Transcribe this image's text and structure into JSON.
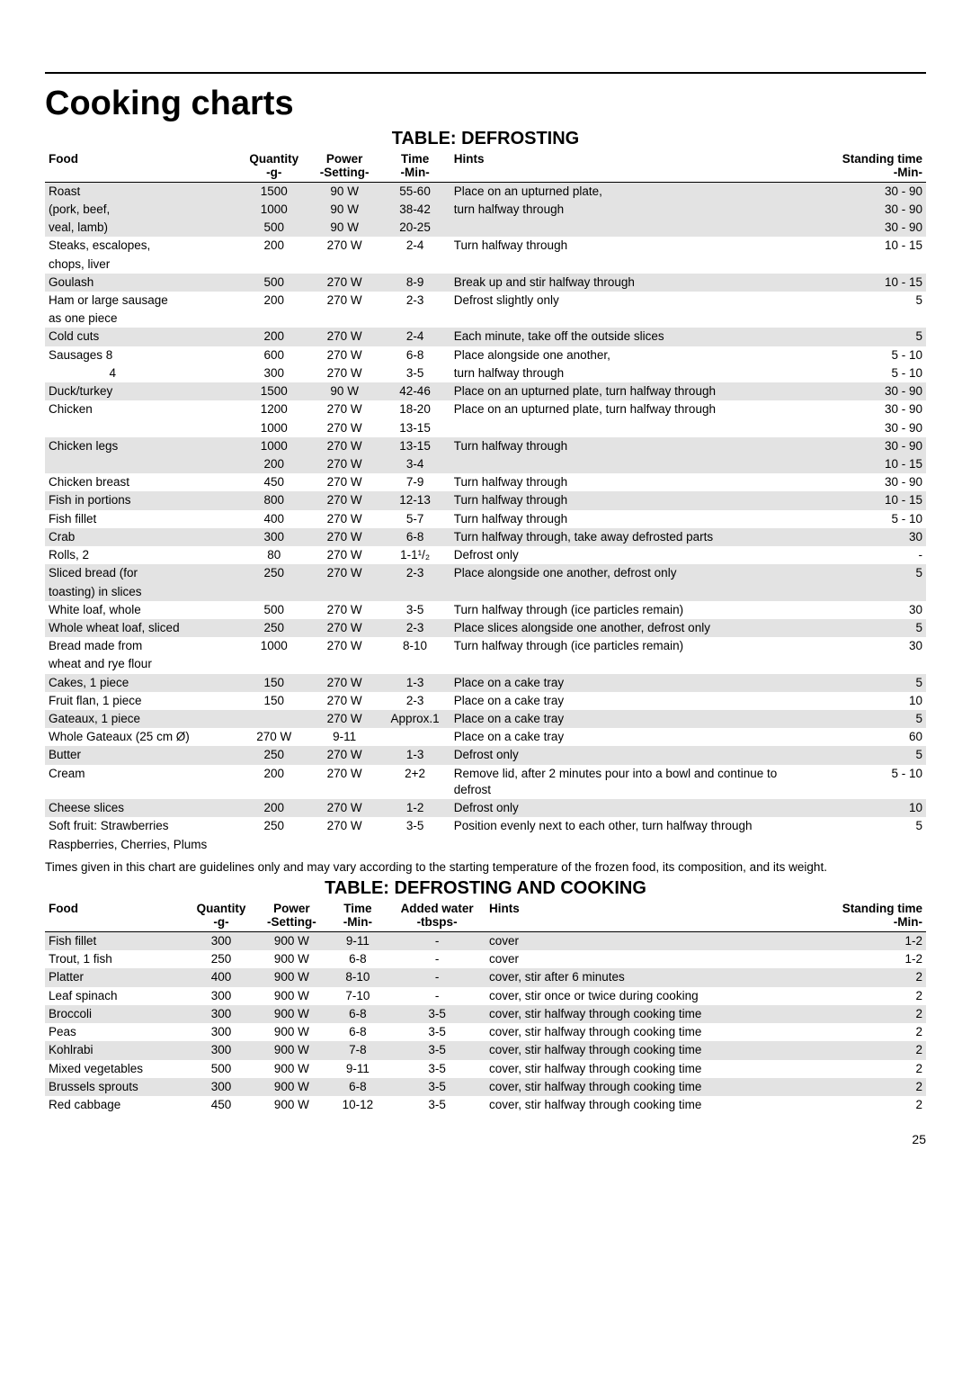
{
  "title": "Cooking charts",
  "table1": {
    "title": "TABLE: DEFROSTING",
    "headers": {
      "food": "Food",
      "qty": "Quantity",
      "qty_sub": "-g-",
      "power": "Power",
      "power_sub": "-Setting-",
      "time": "Time",
      "time_sub": "-Min-",
      "hints": "Hints",
      "stand": "Standing time",
      "stand_sub": "-Min-"
    },
    "rows": [
      {
        "shade": true,
        "food": "Roast",
        "qty": "1500",
        "power": "90 W",
        "time": "55-60",
        "hints": "Place on an upturned plate,",
        "stand": "30 - 90"
      },
      {
        "shade": true,
        "food": "(pork, beef,",
        "qty": "1000",
        "power": "90 W",
        "time": "38-42",
        "hints": "turn halfway through",
        "stand": "30 - 90"
      },
      {
        "shade": true,
        "food": "veal, lamb)",
        "qty": "500",
        "power": "90 W",
        "time": "20-25",
        "hints": "",
        "stand": "30 - 90"
      },
      {
        "shade": false,
        "food": "Steaks, escalopes,",
        "qty": "200",
        "power": "270 W",
        "time": "2-4",
        "hints": "Turn halfway through",
        "stand": "10 - 15"
      },
      {
        "shade": false,
        "food": "chops, liver",
        "qty": "",
        "power": "",
        "time": "",
        "hints": "",
        "stand": ""
      },
      {
        "shade": true,
        "food": "Goulash",
        "qty": "500",
        "power": "270 W",
        "time": "8-9",
        "hints": "Break up and stir halfway through",
        "stand": "10 - 15"
      },
      {
        "shade": false,
        "food": "Ham or large sausage",
        "qty": "200",
        "power": "270 W",
        "time": "2-3",
        "hints": "Defrost slightly only",
        "stand": "5"
      },
      {
        "shade": false,
        "food": "as one piece",
        "qty": "",
        "power": "",
        "time": "",
        "hints": "",
        "stand": ""
      },
      {
        "shade": true,
        "food": "Cold cuts",
        "qty": "200",
        "power": "270 W",
        "time": "2-4",
        "hints": "Each minute, take off the outside slices",
        "stand": "5"
      },
      {
        "shade": false,
        "food": "Sausages  8",
        "qty": "600",
        "power": "270 W",
        "time": "6-8",
        "hints": "Place alongside one another,",
        "stand": "5  - 10"
      },
      {
        "shade": false,
        "food": "     4",
        "qty": "300",
        "power": "270 W",
        "time": "3-5",
        "hints": "turn halfway through",
        "stand": "5  - 10"
      },
      {
        "shade": true,
        "food": "Duck/turkey",
        "qty": "1500",
        "power": "90 W",
        "time": "42-46",
        "hints": "Place on an upturned plate, turn halfway through",
        "stand": "30 - 90"
      },
      {
        "shade": false,
        "food": "Chicken",
        "qty": "1200",
        "power": "270 W",
        "time": "18-20",
        "hints": "Place on an upturned plate, turn halfway through",
        "stand": "30 - 90"
      },
      {
        "shade": false,
        "food": "",
        "qty": "1000",
        "power": "270 W",
        "time": "13-15",
        "hints": "",
        "stand": "30 - 90"
      },
      {
        "shade": true,
        "food": "Chicken legs",
        "qty": "1000",
        "power": "270 W",
        "time": "13-15",
        "hints": "Turn halfway through",
        "stand": "30 - 90"
      },
      {
        "shade": true,
        "food": "",
        "qty": "200",
        "power": "270 W",
        "time": "3-4",
        "hints": "",
        "stand": "10 - 15"
      },
      {
        "shade": false,
        "food": "Chicken breast",
        "qty": "450",
        "power": "270 W",
        "time": "7-9",
        "hints": "Turn halfway through",
        "stand": "30 - 90"
      },
      {
        "shade": true,
        "food": "Fish in portions",
        "qty": "800",
        "power": "270 W",
        "time": "12-13",
        "hints": "Turn halfway through",
        "stand": "10 - 15"
      },
      {
        "shade": false,
        "food": "Fish fillet",
        "qty": "400",
        "power": "270 W",
        "time": "5-7",
        "hints": "Turn halfway through",
        "stand": "5 - 10"
      },
      {
        "shade": true,
        "food": "Crab",
        "qty": "300",
        "power": "270 W",
        "time": "6-8",
        "hints": "Turn halfway through, take away defrosted parts",
        "stand": "30"
      },
      {
        "shade": false,
        "food": "Rolls, 2",
        "qty": "80",
        "power": "270 W",
        "time": "1-1¹/₂",
        "hints": "Defrost only",
        "stand": "-"
      },
      {
        "shade": true,
        "food": "Sliced bread (for",
        "qty": "250",
        "power": "270 W",
        "time": "2-3",
        "hints": "Place alongside one another, defrost only",
        "stand": "5"
      },
      {
        "shade": true,
        "food": "toasting) in slices",
        "qty": "",
        "power": "",
        "time": "",
        "hints": "",
        "stand": ""
      },
      {
        "shade": false,
        "food": "White loaf, whole",
        "qty": "500",
        "power": "270 W",
        "time": "3-5",
        "hints": "Turn halfway through (ice particles remain)",
        "stand": "30"
      },
      {
        "shade": true,
        "food": "Whole wheat loaf, sliced",
        "qty": "250",
        "power": "270 W",
        "time": "2-3",
        "hints": "Place slices alongside one another, defrost only",
        "stand": "5"
      },
      {
        "shade": false,
        "food": "Bread made from",
        "qty": "1000",
        "power": "270 W",
        "time": "8-10",
        "hints": "Turn halfway through (ice particles remain)",
        "stand": "30"
      },
      {
        "shade": false,
        "food": "wheat and rye flour",
        "qty": "",
        "power": "",
        "time": "",
        "hints": "",
        "stand": ""
      },
      {
        "shade": true,
        "food": "Cakes, 1 piece",
        "qty": "150",
        "power": "270 W",
        "time": "1-3",
        "hints": "Place on a cake tray",
        "stand": "5"
      },
      {
        "shade": false,
        "food": "Fruit flan, 1 piece",
        "qty": "150",
        "power": "270 W",
        "time": "2-3",
        "hints": "Place on a cake tray",
        "stand": "10"
      },
      {
        "shade": true,
        "food": "Gateaux, 1 piece",
        "qty": "",
        "power": "270 W",
        "time": "Approx.1",
        "hints": "Place on a cake tray",
        "stand": "5"
      },
      {
        "shade": false,
        "food": "Whole Gateaux (25 cm Ø)",
        "qty": "270 W",
        "power": "9-11",
        "time": "",
        "hints": "Place on a cake tray",
        "stand": "60"
      },
      {
        "shade": true,
        "food": "Butter",
        "qty": "250",
        "power": "270 W",
        "time": "1-3",
        "hints": "Defrost only",
        "stand": "5"
      },
      {
        "shade": false,
        "food": "Cream",
        "qty": "200",
        "power": "270 W",
        "time": "2+2",
        "hints": "Remove lid, after 2 minutes pour into a bowl and continue to defrost",
        "stand": "5 - 10"
      },
      {
        "shade": true,
        "food": "Cheese slices",
        "qty": "200",
        "power": "270 W",
        "time": "1-2",
        "hints": "Defrost only",
        "stand": "10"
      },
      {
        "shade": false,
        "food": "Soft fruit: Strawberries",
        "qty": "250",
        "power": "270 W",
        "time": "3-5",
        "hints": "Position evenly next to each other, turn halfway through",
        "stand": "5"
      },
      {
        "shade": false,
        "food": "Raspberries, Cherries, Plums",
        "qty": "",
        "power": "",
        "time": "",
        "hints": "",
        "stand": ""
      }
    ]
  },
  "footnote": "Times given in this chart are guidelines only and may vary according to the starting temperature of the frozen food, its composition, and its weight.",
  "table2": {
    "title": "TABLE: DEFROSTING AND COOKING",
    "headers": {
      "food": "Food",
      "qty": "Quantity",
      "qty_sub": "-g-",
      "power": "Power",
      "power_sub": "-Setting-",
      "time": "Time",
      "time_sub": "-Min-",
      "added": "Added water",
      "added_sub": "-tbsps-",
      "hints": "Hints",
      "stand": "Standing time",
      "stand_sub": "-Min-"
    },
    "rows": [
      {
        "shade": true,
        "food": "Fish fillet",
        "qty": "300",
        "power": "900 W",
        "time": "9-11",
        "added": "-",
        "hints": "cover",
        "stand": "1-2"
      },
      {
        "shade": false,
        "food": "Trout, 1 fish",
        "qty": "250",
        "power": "900 W",
        "time": "6-8",
        "added": "-",
        "hints": "cover",
        "stand": "1-2"
      },
      {
        "shade": true,
        "food": "Platter",
        "qty": "400",
        "power": "900 W",
        "time": "8-10",
        "added": "-",
        "hints": "cover, stir after 6 minutes",
        "stand": "2"
      },
      {
        "shade": false,
        "food": "Leaf spinach",
        "qty": "300",
        "power": "900 W",
        "time": "7-10",
        "added": "-",
        "hints": "cover, stir once or twice during cooking",
        "stand": "2"
      },
      {
        "shade": true,
        "food": "Broccoli",
        "qty": "300",
        "power": "900 W",
        "time": "6-8",
        "added": "3-5",
        "hints": "cover, stir halfway through cooking time",
        "stand": "2"
      },
      {
        "shade": false,
        "food": "Peas",
        "qty": "300",
        "power": "900 W",
        "time": "6-8",
        "added": "3-5",
        "hints": "cover, stir halfway through cooking time",
        "stand": "2"
      },
      {
        "shade": true,
        "food": "Kohlrabi",
        "qty": "300",
        "power": "900 W",
        "time": "7-8",
        "added": "3-5",
        "hints": "cover, stir halfway through cooking time",
        "stand": "2"
      },
      {
        "shade": false,
        "food": "Mixed vegetables",
        "qty": "500",
        "power": "900 W",
        "time": "9-11",
        "added": "3-5",
        "hints": "cover, stir halfway through cooking time",
        "stand": "2"
      },
      {
        "shade": true,
        "food": "Brussels sprouts",
        "qty": "300",
        "power": "900 W",
        "time": "6-8",
        "added": "3-5",
        "hints": "cover, stir halfway through cooking time",
        "stand": "2"
      },
      {
        "shade": false,
        "food": "Red cabbage",
        "qty": "450",
        "power": "900 W",
        "time": "10-12",
        "added": "3-5",
        "hints": "cover, stir halfway through cooking time",
        "stand": "2"
      }
    ]
  },
  "pagenum": "25",
  "colors": {
    "shade": "#e3e3e3",
    "text": "#000000",
    "bg": "#ffffff"
  },
  "table1_colwidths": {
    "food": "22%",
    "qty": "8%",
    "power": "8%",
    "time": "8%",
    "hints": "42%",
    "stand": "12%"
  },
  "table2_colwidths": {
    "food": "16%",
    "qty": "8%",
    "power": "8%",
    "time": "7%",
    "added": "11%",
    "hints": "37%",
    "stand": "13%"
  }
}
